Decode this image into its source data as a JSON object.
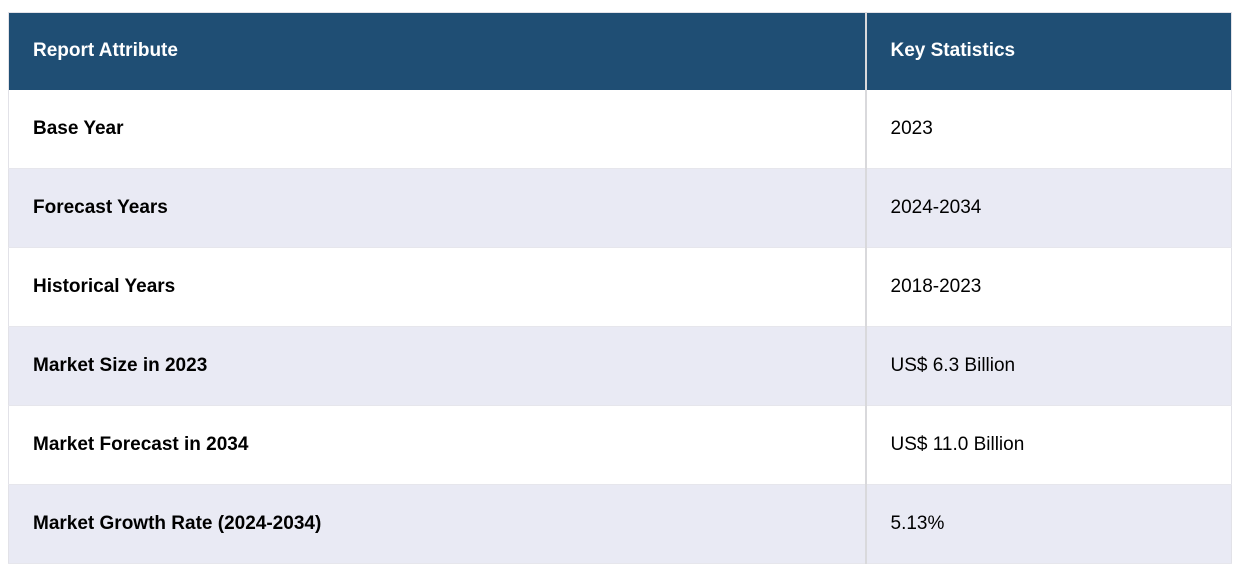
{
  "table": {
    "header": {
      "attribute_label": "Report Attribute",
      "statistic_label": "Key Statistics"
    },
    "rows": [
      {
        "attribute": "Base Year",
        "value": "2023"
      },
      {
        "attribute": "Forecast Years",
        "value": "2024-2034"
      },
      {
        "attribute": "Historical Years",
        "value": "2018-2023"
      },
      {
        "attribute": "Market Size in 2023",
        "value": "US$ 6.3 Billion"
      },
      {
        "attribute": "Market Forecast in 2034",
        "value": "US$ 11.0 Billion"
      },
      {
        "attribute": "Market Growth Rate (2024-2034)",
        "value": "5.13%"
      }
    ],
    "colors": {
      "header_bg": "#1f4e74",
      "header_text": "#ffffff",
      "stripe_bg": "#e9eaf4",
      "row_bg": "#ffffff",
      "body_text": "#000000",
      "divider": "#d9d9dc",
      "row_border": "#e6e6ec",
      "outer_border": "#e2e2e8"
    }
  },
  "chart_data": {
    "type": "table",
    "title": "Report Attribute / Key Statistics summary",
    "columns": [
      "Report Attribute",
      "Key Statistics"
    ],
    "rows": [
      [
        "Base Year",
        "2023"
      ],
      [
        "Forecast Years",
        "2024-2034"
      ],
      [
        "Historical Years",
        "2018-2023"
      ],
      [
        "Market Size in 2023",
        "US$ 6.3 Billion"
      ],
      [
        "Market Forecast in 2034",
        "US$ 11.0 Billion"
      ],
      [
        "Market Growth Rate (2024-2034)",
        "5.13%"
      ]
    ],
    "numeric_values": {
      "base_year": 2023,
      "forecast_start": 2024,
      "forecast_end": 2034,
      "historical_start": 2018,
      "historical_end": 2023,
      "market_size_2023_usd_billion": 6.3,
      "market_forecast_2034_usd_billion": 11.0,
      "cagr_percent_2024_2034": 5.13
    }
  }
}
